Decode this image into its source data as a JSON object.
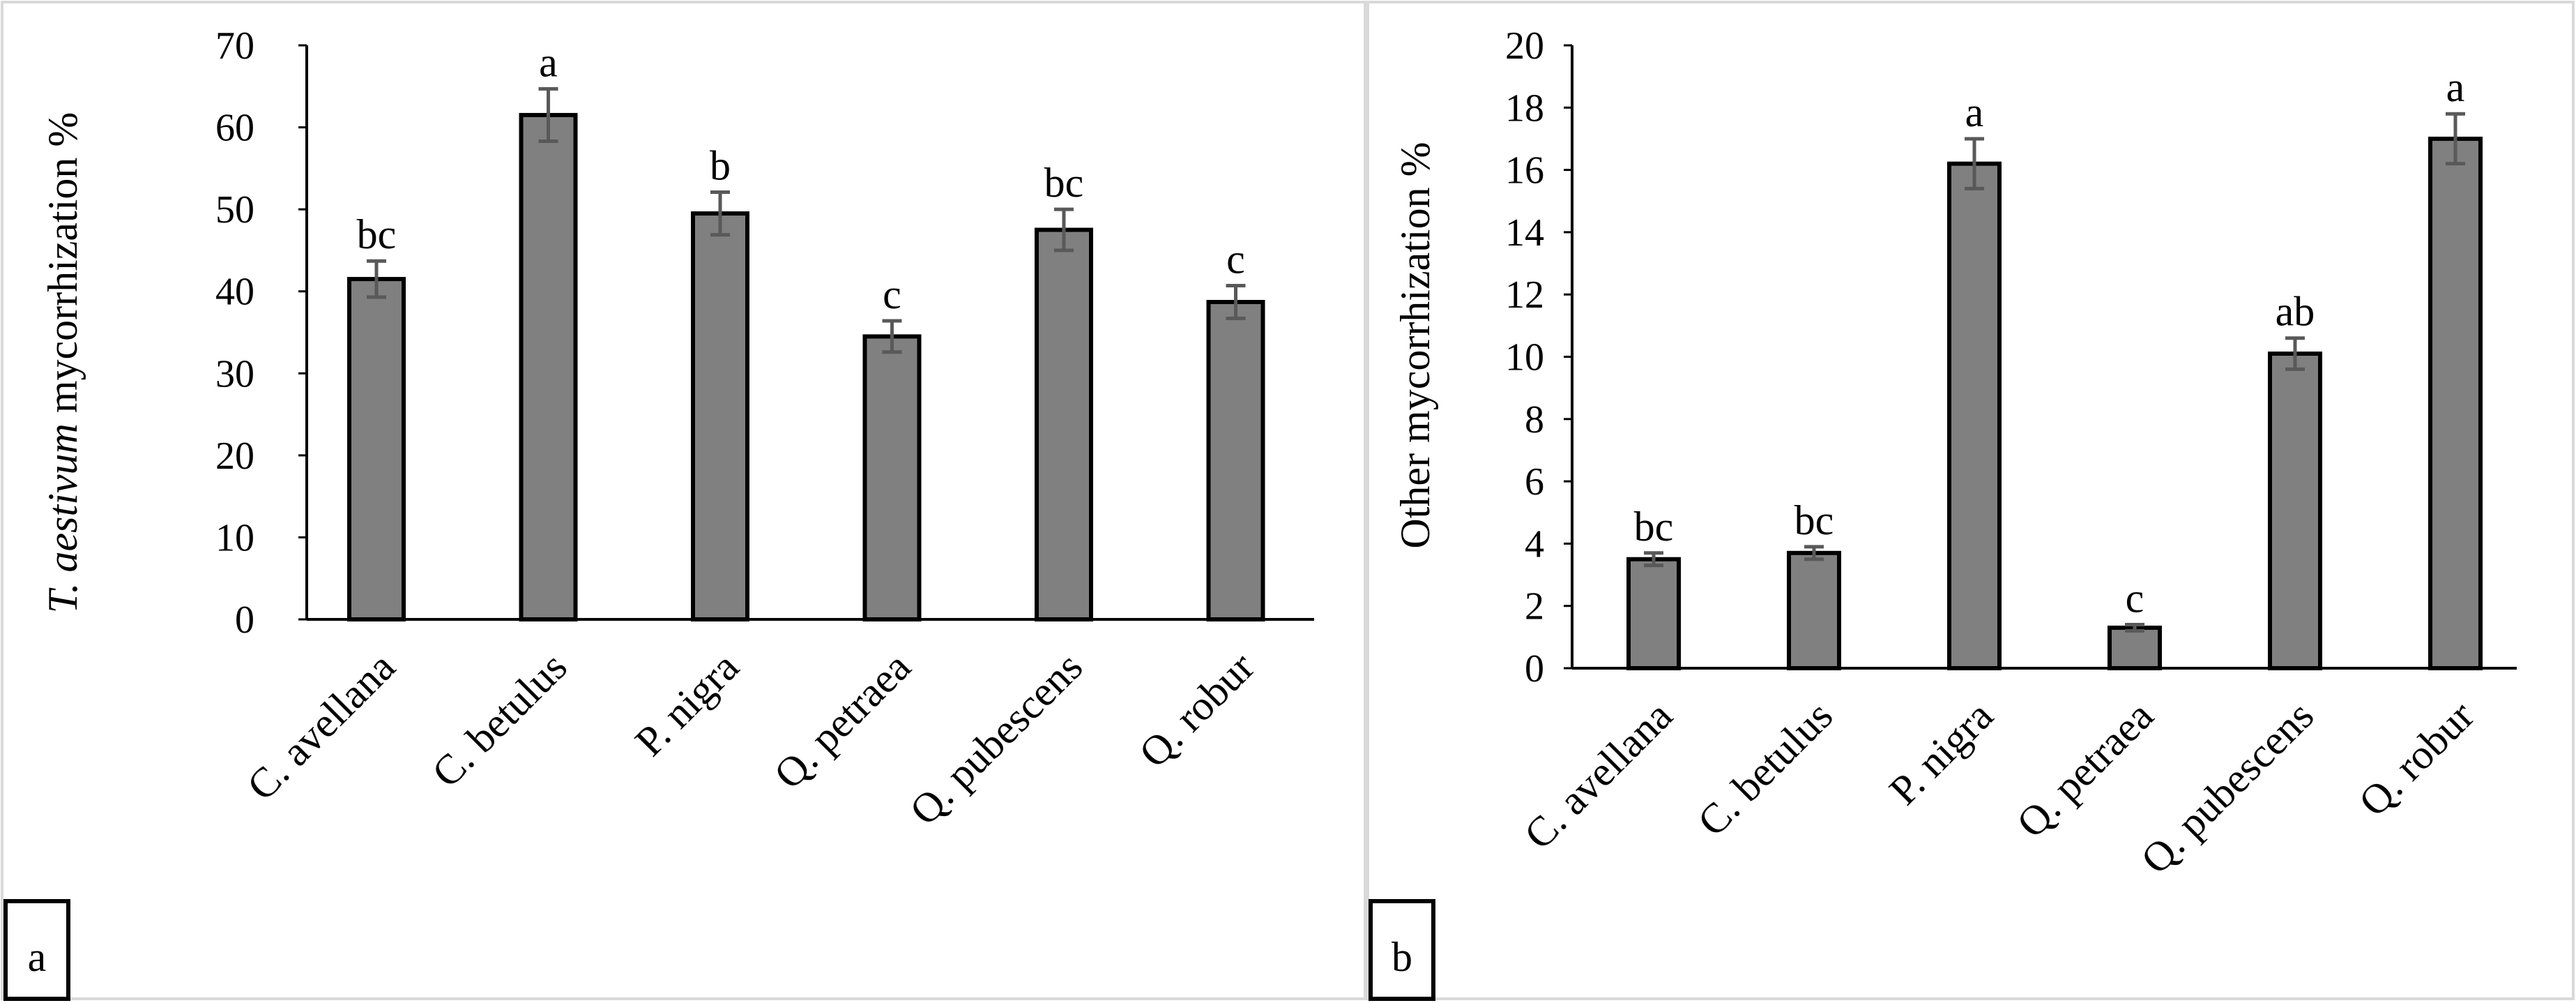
{
  "chart_data": [
    {
      "panel_label": "a",
      "type": "bar",
      "ylabel_italic": "T. aestivum",
      "ylabel_rest": " mycorrhization %",
      "ylim": [
        0,
        70
      ],
      "yticks": [
        0,
        10,
        20,
        30,
        40,
        50,
        60,
        70
      ],
      "bar_color": "#808080",
      "categories": [
        "C. avellana",
        "C. betulus",
        "P. nigra",
        "Q. petraea",
        "Q. pubescens",
        "Q. robur"
      ],
      "values": [
        41.5,
        61.5,
        49.5,
        34.5,
        47.5,
        38.7
      ],
      "errors": [
        2.2,
        3.2,
        2.6,
        1.9,
        2.5,
        2.0
      ],
      "significance": [
        "bc",
        "a",
        "b",
        "c",
        "bc",
        "c"
      ]
    },
    {
      "panel_label": "b",
      "type": "bar",
      "ylabel_italic": "",
      "ylabel_rest": "Other mycorrhization %",
      "ylim": [
        0,
        20
      ],
      "yticks": [
        0,
        2,
        4,
        6,
        8,
        10,
        12,
        14,
        16,
        18,
        20
      ],
      "bar_color": "#808080",
      "categories": [
        "C. avellana",
        "C. betulus",
        "P. nigra",
        "Q. petraea",
        "Q. pubescens",
        "Q. robur"
      ],
      "values": [
        3.5,
        3.7,
        16.2,
        1.3,
        10.1,
        17.0
      ],
      "errors": [
        0.2,
        0.2,
        0.8,
        0.1,
        0.5,
        0.8
      ],
      "significance": [
        "bc",
        "bc",
        "a",
        "c",
        "ab",
        "a"
      ]
    }
  ]
}
